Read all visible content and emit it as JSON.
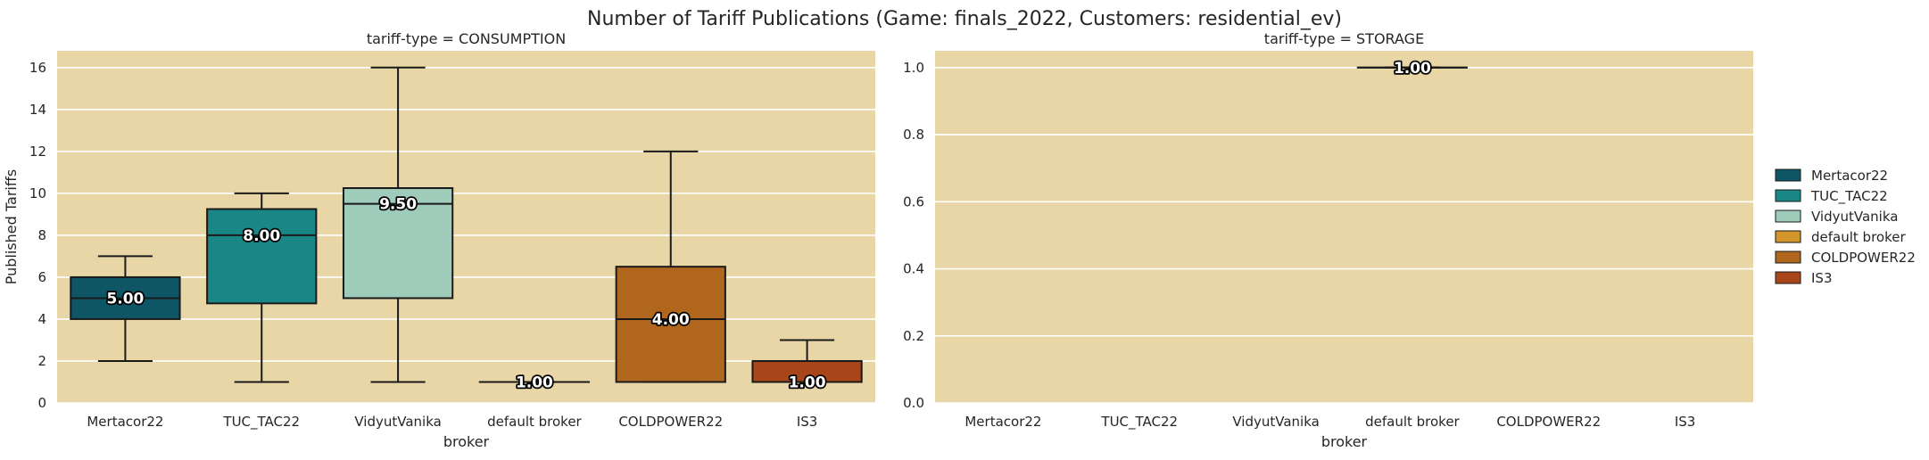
{
  "figure": {
    "title": "Number of Tariff Publications (Game: finals_2022, Customers: residential_ev)"
  },
  "colors": {
    "panel_bg": "#e8d6a6",
    "grid": "#ffffff",
    "box_edge": "#1a1a1a",
    "Mertacor22": "#0e5566",
    "TUC_TAC22": "#1a8787",
    "VidyutVanika": "#9ecbba",
    "default broker": "#d4952a",
    "COLDPOWER22": "#b0661d",
    "IS3": "#a8461a"
  },
  "legend": {
    "placement": "center-right",
    "entries": [
      "Mertacor22",
      "TUC_TAC22",
      "VidyutVanika",
      "default broker",
      "COLDPOWER22",
      "IS3"
    ]
  },
  "chart_data": [
    {
      "type": "box",
      "title": "tariff-type = CONSUMPTION",
      "xlabel": "broker",
      "ylabel": "Published Tariffs",
      "ylim": [
        0,
        16.8
      ],
      "yticks": [
        0,
        2,
        4,
        6,
        8,
        10,
        12,
        14,
        16
      ],
      "ytick_labels": [
        "0",
        "2",
        "4",
        "6",
        "8",
        "10",
        "12",
        "14",
        "16"
      ],
      "grid": true,
      "categories": [
        "Mertacor22",
        "TUC_TAC22",
        "VidyutVanika",
        "default broker",
        "COLDPOWER22",
        "IS3"
      ],
      "boxes": [
        {
          "broker": "Mertacor22",
          "whisker_low": 2,
          "q1": 4,
          "median": 5,
          "q3": 6,
          "whisker_high": 7,
          "label": "5.00"
        },
        {
          "broker": "TUC_TAC22",
          "whisker_low": 1,
          "q1": 4.75,
          "median": 8,
          "q3": 9.25,
          "whisker_high": 10,
          "label": "8.00"
        },
        {
          "broker": "VidyutVanika",
          "whisker_low": 1,
          "q1": 5,
          "median": 9.5,
          "q3": 10.25,
          "whisker_high": 16,
          "label": "9.50"
        },
        {
          "broker": "default broker",
          "whisker_low": 1,
          "q1": 1,
          "median": 1,
          "q3": 1,
          "whisker_high": 1,
          "label": "1.00"
        },
        {
          "broker": "COLDPOWER22",
          "whisker_low": 1,
          "q1": 1,
          "median": 4,
          "q3": 6.5,
          "whisker_high": 12,
          "label": "4.00"
        },
        {
          "broker": "IS3",
          "whisker_low": 1,
          "q1": 1,
          "median": 1,
          "q3": 2,
          "whisker_high": 3,
          "label": "1.00"
        }
      ]
    },
    {
      "type": "box",
      "title": "tariff-type = STORAGE",
      "xlabel": "broker",
      "ylabel": "",
      "ylim": [
        0,
        1.05
      ],
      "yticks": [
        0,
        0.2,
        0.4,
        0.6,
        0.8,
        1.0
      ],
      "ytick_labels": [
        "0.0",
        "0.2",
        "0.4",
        "0.6",
        "0.8",
        "1.0"
      ],
      "grid": true,
      "categories": [
        "Mertacor22",
        "TUC_TAC22",
        "VidyutVanika",
        "default broker",
        "COLDPOWER22",
        "IS3"
      ],
      "boxes": [
        {
          "broker": "default broker",
          "whisker_low": 1,
          "q1": 1,
          "median": 1,
          "q3": 1,
          "whisker_high": 1,
          "label": "1.00"
        }
      ]
    }
  ]
}
